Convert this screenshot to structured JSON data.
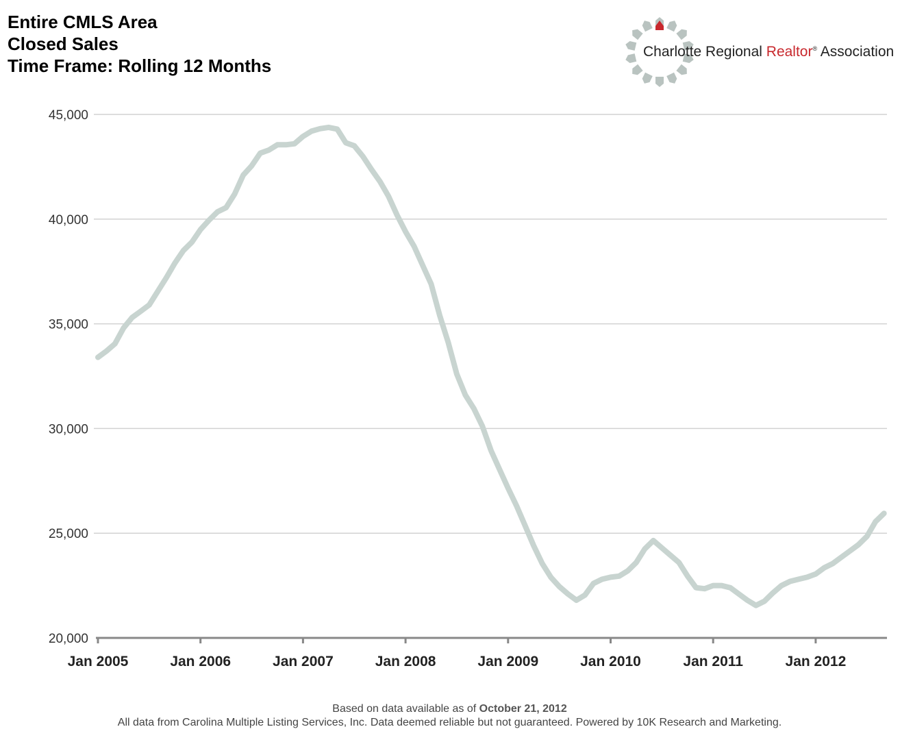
{
  "header": {
    "title_lines": [
      "Entire CMLS Area",
      "Closed Sales",
      "Time Frame: Rolling 12 Months"
    ]
  },
  "logo": {
    "text_part1": "Charlotte Regional ",
    "text_accent": "Realtor",
    "text_reg": "®",
    "text_part2": " Association",
    "accent_color": "#c8282d"
  },
  "footer": {
    "line1_prefix": "Based on data available as of ",
    "line1_date": "October 21, 2012",
    "line2": "All data from Carolina Multiple Listing Services, Inc. Data deemed reliable but not guaranteed. Powered by 10K Research and Marketing."
  },
  "chart_data": {
    "type": "line",
    "title": "",
    "xlabel": "",
    "ylabel": "",
    "ylim": [
      20000,
      45000
    ],
    "yticks": [
      20000,
      25000,
      30000,
      35000,
      40000,
      45000
    ],
    "ytick_labels": [
      "20,000",
      "25,000",
      "30,000",
      "35,000",
      "40,000",
      "45,000"
    ],
    "xtick_labels": [
      "Jan 2005",
      "Jan 2006",
      "Jan 2007",
      "Jan 2008",
      "Jan 2009",
      "Jan 2010",
      "Jan 2011",
      "Jan 2012"
    ],
    "grid": true,
    "line_color": "#c8d4d0",
    "series": [
      {
        "x": [
          "2005-01",
          "2005-02",
          "2005-03",
          "2005-04",
          "2005-05",
          "2005-06",
          "2005-07",
          "2005-08",
          "2005-09",
          "2005-10",
          "2005-11",
          "2005-12",
          "2006-01",
          "2006-02",
          "2006-03",
          "2006-04",
          "2006-05",
          "2006-06",
          "2006-07",
          "2006-08",
          "2006-09",
          "2006-10",
          "2006-11",
          "2006-12",
          "2007-01",
          "2007-02",
          "2007-03",
          "2007-04",
          "2007-05",
          "2007-06",
          "2007-07",
          "2007-08",
          "2007-09",
          "2007-10",
          "2007-11",
          "2007-12",
          "2008-01",
          "2008-02",
          "2008-03",
          "2008-04",
          "2008-05",
          "2008-06",
          "2008-07",
          "2008-08",
          "2008-09",
          "2008-10",
          "2008-11",
          "2008-12",
          "2009-01",
          "2009-02",
          "2009-03",
          "2009-04",
          "2009-05",
          "2009-06",
          "2009-07",
          "2009-08",
          "2009-09",
          "2009-10",
          "2009-11",
          "2009-12",
          "2010-01",
          "2010-02",
          "2010-03",
          "2010-04",
          "2010-05",
          "2010-06",
          "2010-07",
          "2010-08",
          "2010-09",
          "2010-10",
          "2010-11",
          "2010-12",
          "2011-01",
          "2011-02",
          "2011-03",
          "2011-04",
          "2011-05",
          "2011-06",
          "2011-07",
          "2011-08",
          "2011-09",
          "2011-10",
          "2011-11",
          "2011-12",
          "2012-01",
          "2012-02",
          "2012-03",
          "2012-04",
          "2012-05",
          "2012-06",
          "2012-07",
          "2012-08",
          "2012-09"
        ],
        "values": [
          33400,
          33700,
          34050,
          34800,
          35300,
          35600,
          35900,
          36550,
          37200,
          37900,
          38500,
          38900,
          39500,
          39950,
          40350,
          40550,
          41200,
          42100,
          42550,
          43150,
          43300,
          43550,
          43550,
          43600,
          43950,
          44200,
          44320,
          44380,
          44300,
          43650,
          43500,
          43000,
          42380,
          41800,
          41100,
          40200,
          39400,
          38700,
          37800,
          36900,
          35400,
          34100,
          32600,
          31600,
          30950,
          30100,
          28950,
          28050,
          27150,
          26300,
          25350,
          24400,
          23550,
          22900,
          22450,
          22100,
          21800,
          22050,
          22600,
          22800,
          22900,
          22950,
          23200,
          23600,
          24250,
          24650,
          24300,
          23950,
          23600,
          22950,
          22400,
          22350,
          22500,
          22500,
          22400,
          22100,
          21800,
          21550,
          21750,
          22150,
          22500,
          22700,
          22800,
          22900,
          23050,
          23350,
          23550,
          23850,
          24150,
          24450,
          24850,
          25550,
          25950
        ]
      }
    ]
  }
}
